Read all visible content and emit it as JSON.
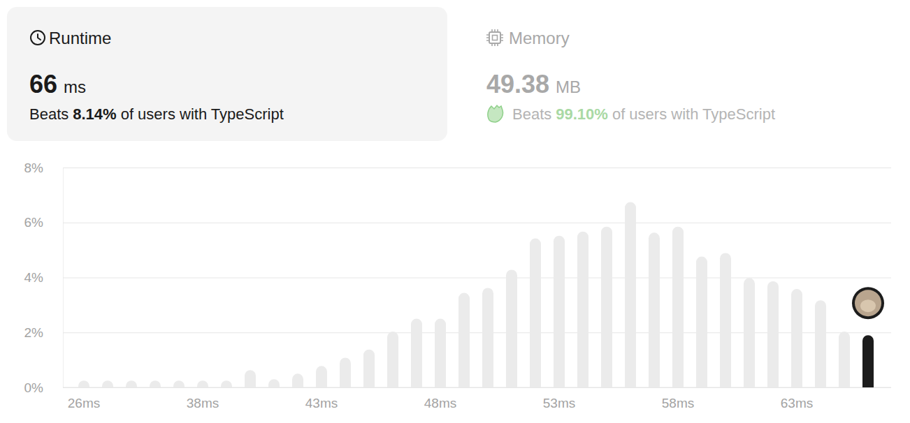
{
  "chart_data": {
    "type": "bar",
    "categories": [
      "26ms",
      null,
      null,
      null,
      null,
      "38ms",
      null,
      null,
      null,
      null,
      "43ms",
      null,
      null,
      null,
      null,
      "48ms",
      null,
      null,
      null,
      null,
      "53ms",
      null,
      null,
      null,
      null,
      "58ms",
      null,
      null,
      null,
      null,
      "63ms",
      null,
      null,
      null
    ],
    "values": [
      0.25,
      0.25,
      0.25,
      0.25,
      0.25,
      0.25,
      0.25,
      0.63,
      0.3,
      0.5,
      0.78,
      1.08,
      1.38,
      2.03,
      2.5,
      2.5,
      3.44,
      3.62,
      4.28,
      5.42,
      5.52,
      5.67,
      5.85,
      6.74,
      5.63,
      5.85,
      4.76,
      4.89,
      3.98,
      3.86,
      3.58,
      3.17,
      2.03,
      1.9
    ],
    "colors": [
      "#ebebeb",
      "#ebebeb",
      "#ebebeb",
      "#ebebeb",
      "#ebebeb",
      "#ebebeb",
      "#ebebeb",
      "#ebebeb",
      "#ebebeb",
      "#ebebeb",
      "#ebebeb",
      "#ebebeb",
      "#ebebeb",
      "#ebebeb",
      "#ebebeb",
      "#ebebeb",
      "#ebebeb",
      "#ebebeb",
      "#ebebeb",
      "#ebebeb",
      "#ebebeb",
      "#ebebeb",
      "#ebebeb",
      "#ebebeb",
      "#ebebeb",
      "#ebebeb",
      "#ebebeb",
      "#ebebeb",
      "#ebebeb",
      "#ebebeb",
      "#ebebeb",
      "#ebebeb",
      "#ebebeb",
      "#1c1c1c"
    ],
    "ylim": [
      0,
      8
    ],
    "yticks": [
      {
        "value": 0,
        "label": "0%"
      },
      {
        "value": 2,
        "label": "2%"
      },
      {
        "value": 4,
        "label": "4%"
      },
      {
        "value": 6,
        "label": "6%"
      },
      {
        "value": 8,
        "label": "8%"
      }
    ],
    "grid": true
  },
  "stats": {
    "runtime": {
      "title": "Runtime",
      "value": 66,
      "unit": "ms",
      "beats_prefix": "Beats",
      "beats": {
        "value": 8.14,
        "label": "8.14%"
      },
      "beats_suffix": "of users with TypeScript"
    },
    "memory": {
      "title": "Memory",
      "value": 49.38,
      "unit": "MB",
      "beats_prefix": "Beats",
      "beats": {
        "value": 99.1,
        "label": "99.10%"
      },
      "beats_suffix": "of users with TypeScript"
    }
  }
}
